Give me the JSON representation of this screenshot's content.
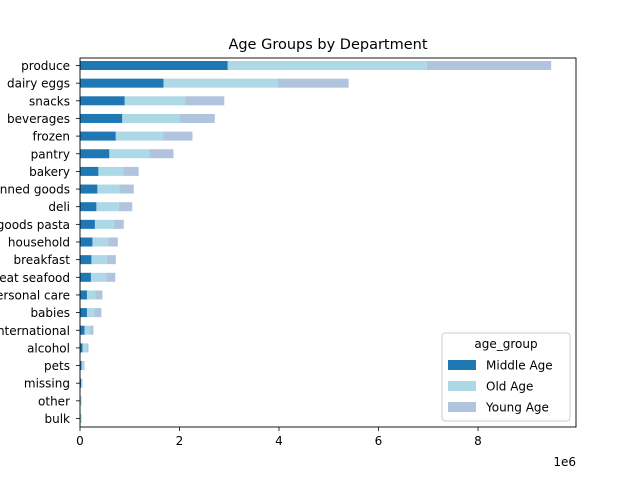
{
  "chart_data": {
    "type": "bar",
    "orientation": "horizontal",
    "stacked": true,
    "title": "Age Groups by Department",
    "xlabel": "",
    "ylabel": "",
    "x_offset_label": "1e6",
    "xlim": [
      0,
      10
    ],
    "x_ticks": [
      "0",
      "2",
      "4",
      "6",
      "8"
    ],
    "grid": false,
    "legend": {
      "title": "age_group",
      "placement": "lower-right"
    },
    "categories": [
      "produce",
      "dairy eggs",
      "snacks",
      "beverages",
      "frozen",
      "pantry",
      "bakery",
      "canned goods",
      "deli",
      "dry goods pasta",
      "household",
      "breakfast",
      "meat seafood",
      "personal care",
      "babies",
      "international",
      "alcohol",
      "pets",
      "missing",
      "other",
      "bulk"
    ],
    "series": [
      {
        "name": "Middle Age",
        "color": "#1f77b4",
        "values": [
          2.97,
          1.68,
          0.9,
          0.85,
          0.72,
          0.59,
          0.37,
          0.35,
          0.33,
          0.3,
          0.25,
          0.23,
          0.22,
          0.14,
          0.14,
          0.09,
          0.05,
          0.03,
          0.02,
          0.01,
          0.01
        ]
      },
      {
        "name": "Old Age",
        "color": "#add8e6",
        "values": [
          4.0,
          2.3,
          1.22,
          1.16,
          0.95,
          0.8,
          0.5,
          0.44,
          0.45,
          0.38,
          0.32,
          0.31,
          0.31,
          0.17,
          0.15,
          0.12,
          0.09,
          0.04,
          0.02,
          0.01,
          0.01
        ]
      },
      {
        "name": "Young Age",
        "color": "#b0c4de",
        "values": [
          2.5,
          1.42,
          0.78,
          0.7,
          0.59,
          0.49,
          0.31,
          0.29,
          0.27,
          0.2,
          0.19,
          0.18,
          0.18,
          0.14,
          0.14,
          0.06,
          0.03,
          0.02,
          0.01,
          0.01,
          0.01
        ]
      }
    ]
  }
}
